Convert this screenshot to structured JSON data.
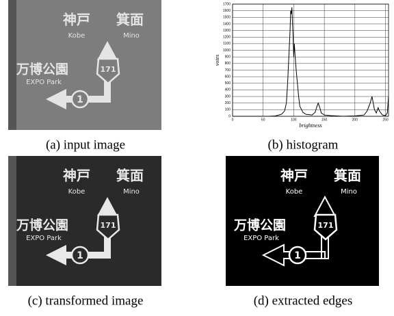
{
  "panels": [
    {
      "caption": "(a) input image"
    },
    {
      "caption": "(b) histogram"
    },
    {
      "caption": "(c) transformed image"
    },
    {
      "caption": "(d) extracted edges"
    }
  ],
  "sign": {
    "kanji_left": "神戸",
    "kanji_right": "箕面",
    "left": "Kobe",
    "right": "Mino",
    "kanji_park": "万博公園",
    "park": "EXPO Park",
    "route": "171",
    "exit": "1"
  },
  "chart_data": {
    "type": "line",
    "xlabel": "brightness",
    "ylabel": "votes",
    "color": "#000000",
    "grid": true,
    "x": [
      0,
      60,
      70,
      80,
      85,
      88,
      90,
      92,
      94,
      95,
      96,
      97,
      98,
      99,
      100,
      101,
      102,
      104,
      106,
      108,
      110,
      115,
      120,
      130,
      135,
      138,
      140,
      142,
      145,
      150,
      160,
      180,
      200,
      215,
      220,
      225,
      228,
      230,
      232,
      235,
      238,
      240,
      245,
      250,
      253,
      255
    ],
    "values": [
      0,
      0,
      5,
      30,
      80,
      200,
      500,
      900,
      1300,
      1600,
      1550,
      1650,
      1400,
      1200,
      900,
      1100,
      950,
      700,
      500,
      300,
      150,
      60,
      30,
      20,
      60,
      150,
      200,
      150,
      50,
      20,
      10,
      0,
      5,
      20,
      80,
      200,
      300,
      200,
      100,
      50,
      130,
      80,
      20,
      10,
      50,
      300
    ],
    "xlim": [
      0,
      255
    ],
    "xticks": [
      0,
      50,
      100,
      150,
      200,
      250
    ],
    "ylim": [
      0,
      1700
    ],
    "yticks": [
      0,
      100,
      200,
      300,
      400,
      500,
      600,
      700,
      800,
      900,
      1000,
      1100,
      1200,
      1300,
      1400,
      1500,
      1600,
      1700
    ]
  }
}
